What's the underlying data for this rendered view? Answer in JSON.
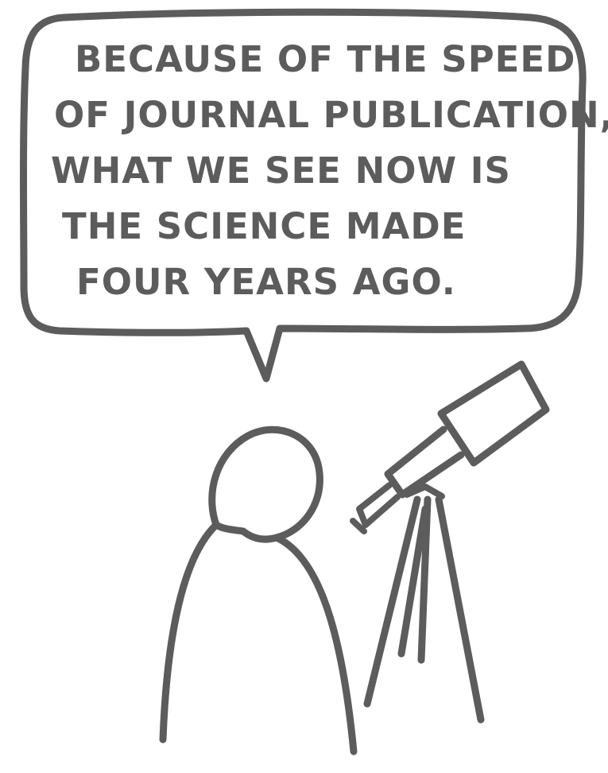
{
  "speech_bubble": {
    "lines": [
      "BECAUSE OF THE SPEED",
      "OF JOURNAL PUBLICATION,",
      "WHAT WE SEE NOW IS",
      "THE SCIENCE MADE",
      "FOUR YEARS AGO."
    ]
  },
  "style": {
    "ink_color": "#5c5c5c",
    "background_color": "#ffffff"
  },
  "icons": [
    "stick-figure",
    "telescope",
    "tripod"
  ]
}
